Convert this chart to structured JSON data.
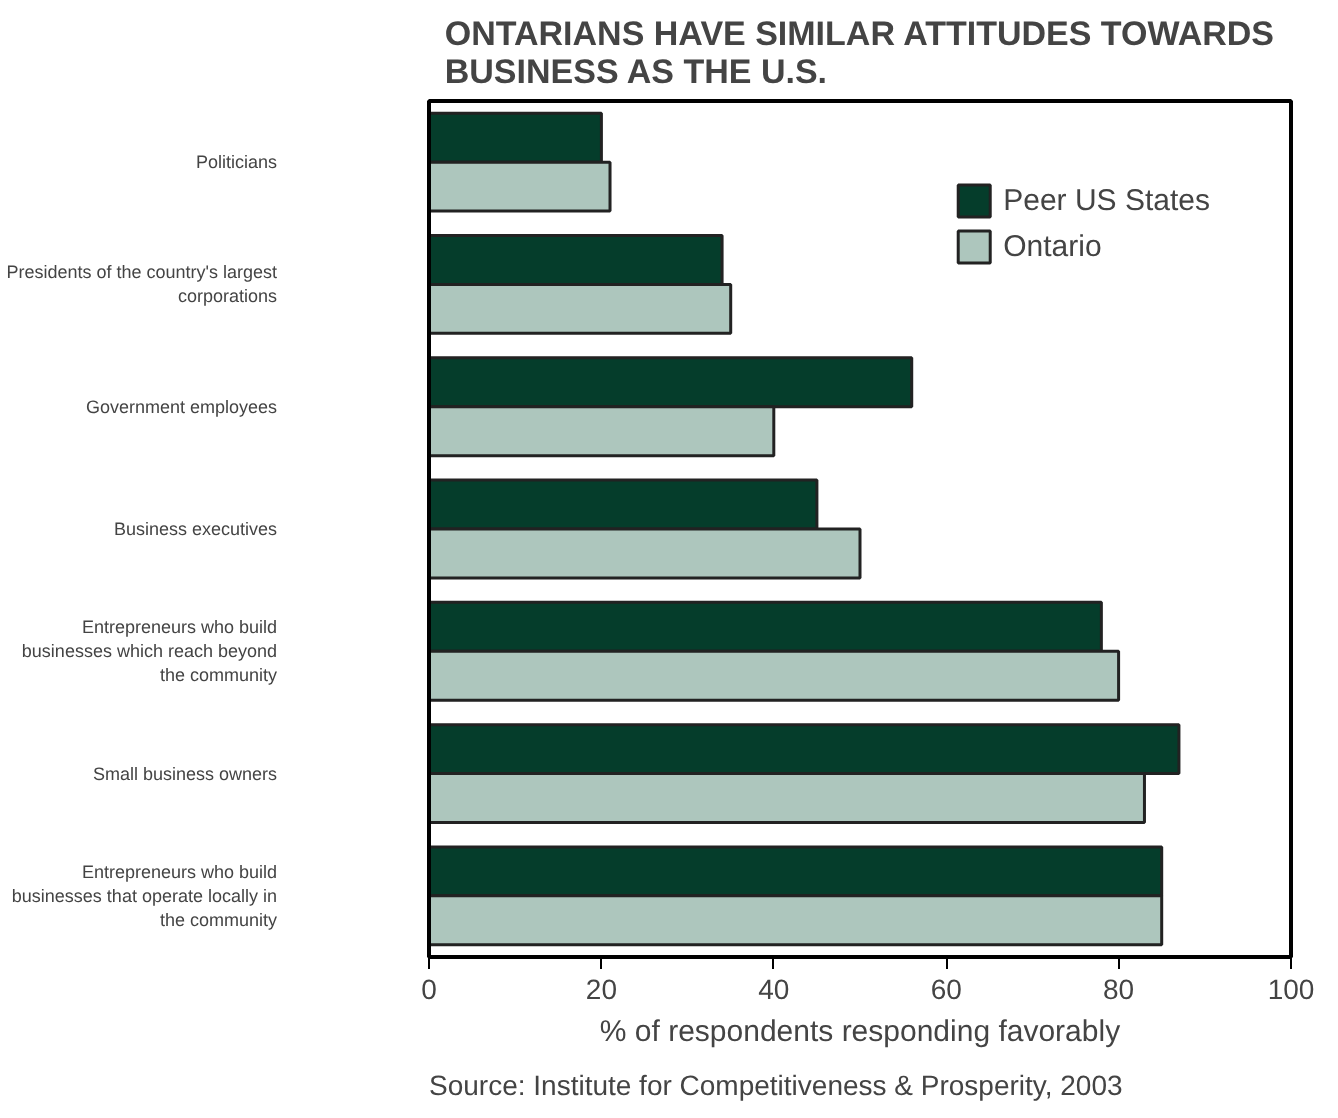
{
  "chart_data": {
    "type": "bar",
    "orientation": "horizontal",
    "title": "ONTARIANS HAVE SIMILAR ATTITUDES TOWARDS\nBUSINESS AS THE U.S.",
    "categories": [
      "Politicians",
      "Presidents of the country's largest\ncorporations",
      "Government employees",
      "Business executives",
      "Entrepreneurs who build\nbusinesses which reach beyond\nthe community",
      "Small business owners",
      "Entrepreneurs who build\nbusinesses that operate locally in\nthe community"
    ],
    "series": [
      {
        "name": "Peer US States",
        "color": "#053d2b",
        "values": [
          20,
          34,
          56,
          45,
          78,
          87,
          85
        ]
      },
      {
        "name": "Ontario",
        "color": "#adc6bd",
        "values": [
          21,
          35,
          40,
          50,
          80,
          83,
          85
        ]
      }
    ],
    "xlim": [
      0,
      100
    ],
    "xticks": [
      0,
      20,
      40,
      60,
      80,
      100
    ],
    "xlabel": "% of respondents responding favorably",
    "legend": "top right",
    "grid": false,
    "annotations": [
      "Source: Institute for Competitiveness & Prosperity, 2003"
    ]
  }
}
